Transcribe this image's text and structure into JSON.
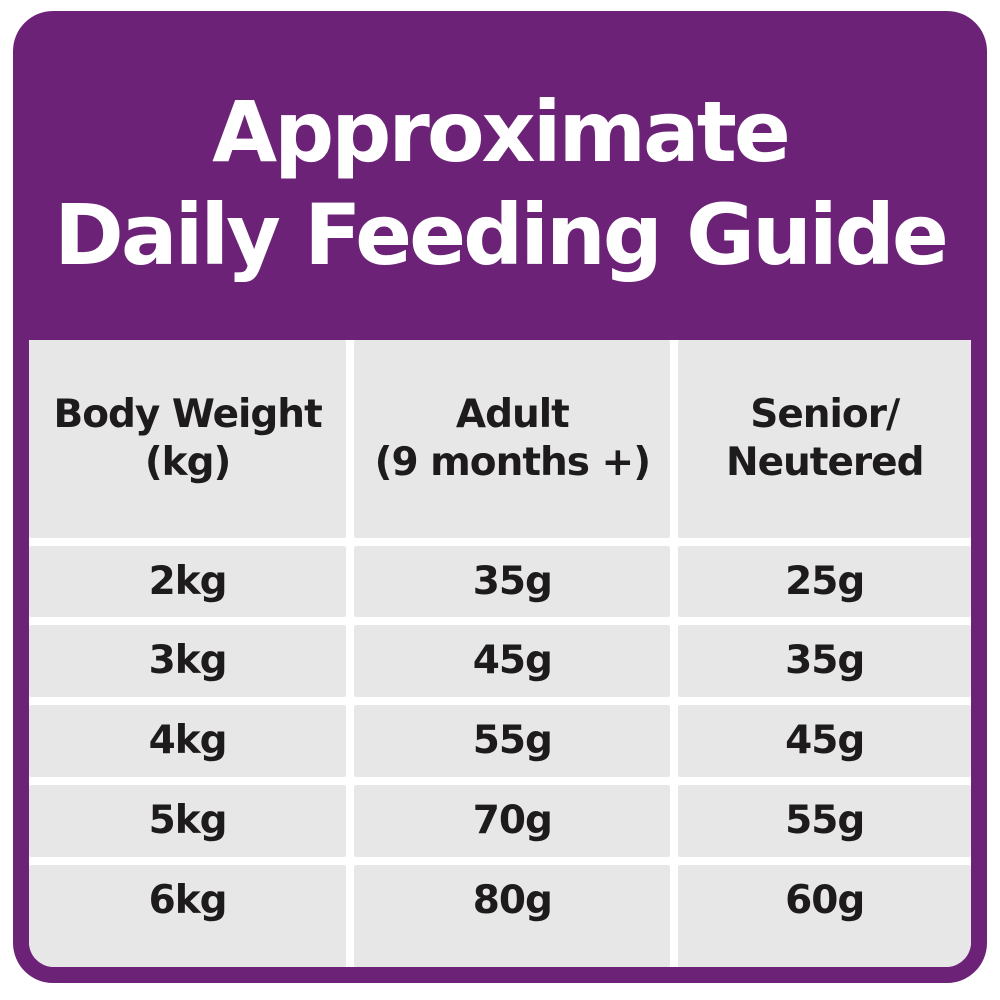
{
  "title": {
    "line1": "Approximate",
    "line2": "Daily Feeding Guide"
  },
  "table": {
    "headers": [
      {
        "line1": "Body Weight",
        "line2": "(kg)"
      },
      {
        "line1": "Adult",
        "line2": "(9 months +)"
      },
      {
        "line1": "Senior/",
        "line2": "Neutered"
      }
    ],
    "rows": [
      [
        "2kg",
        "35g",
        "25g"
      ],
      [
        "3kg",
        "45g",
        "35g"
      ],
      [
        "4kg",
        "55g",
        "45g"
      ],
      [
        "5kg",
        "70g",
        "55g"
      ],
      [
        "6kg",
        "80g",
        "60g"
      ]
    ]
  },
  "colors": {
    "purple": "#6C2277",
    "cell_gray": "#E8E7E8",
    "text_dark": "#1D1B1C",
    "gap_white": "#FFFFFF"
  },
  "chart_data": {
    "type": "table",
    "title": "Approximate Daily Feeding Guide",
    "columns": [
      "Body Weight (kg)",
      "Adult (9 months +)",
      "Senior/Neutered"
    ],
    "rows": [
      [
        "2kg",
        "35g",
        "25g"
      ],
      [
        "3kg",
        "45g",
        "35g"
      ],
      [
        "4kg",
        "55g",
        "45g"
      ],
      [
        "5kg",
        "70g",
        "55g"
      ],
      [
        "6kg",
        "80g",
        "60g"
      ]
    ]
  }
}
